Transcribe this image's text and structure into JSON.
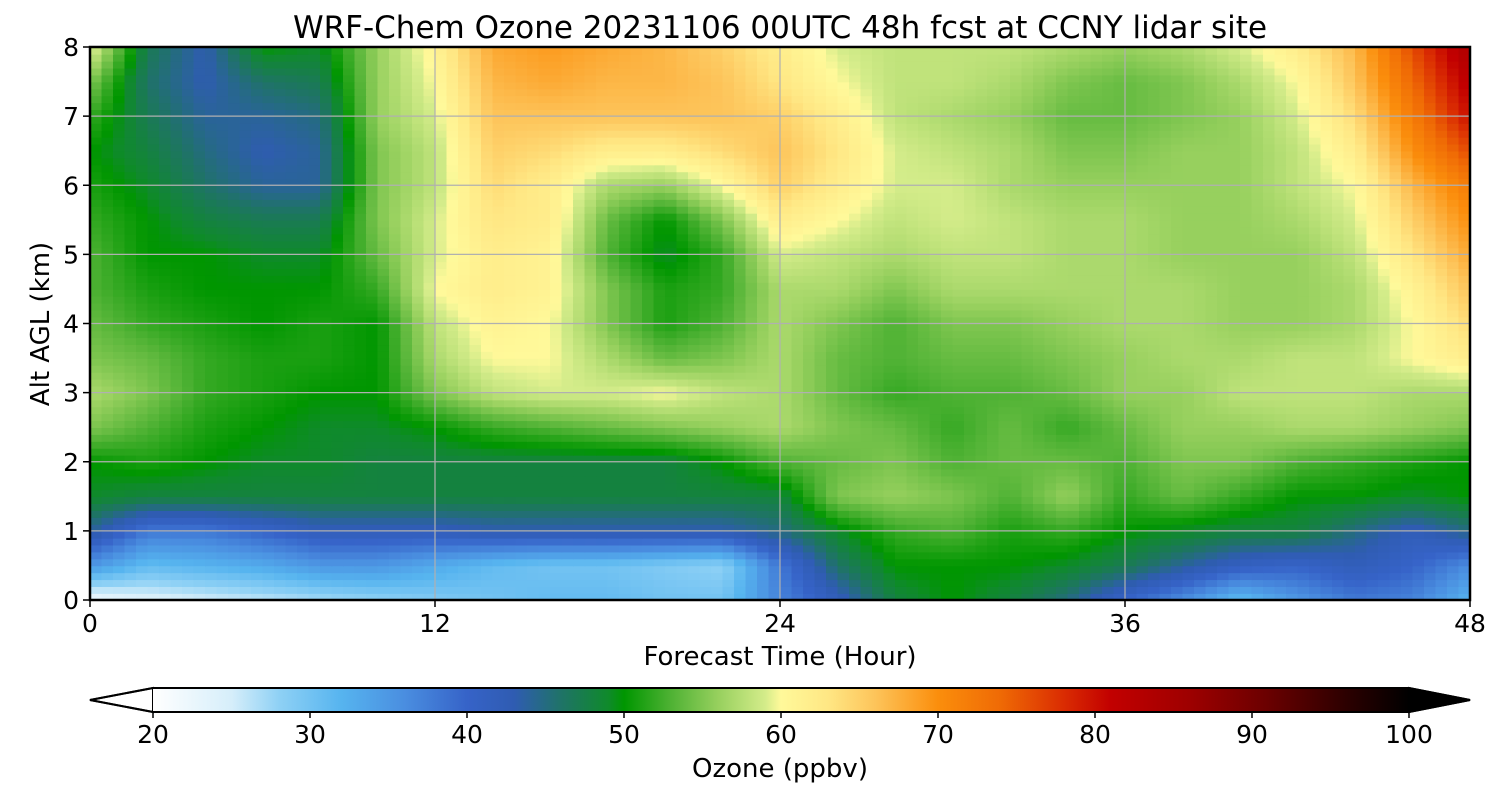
{
  "chart_data": {
    "type": "heatmap",
    "title": "WRF-Chem Ozone  20231106 00UTC 48h fcst at CCNY lidar site",
    "xlabel": "Forecast Time (Hour)",
    "ylabel": "Alt AGL (km)",
    "xlim": [
      0,
      48
    ],
    "ylim": [
      0,
      8
    ],
    "x_ticks": [
      0,
      12,
      24,
      36,
      48
    ],
    "y_ticks": [
      0,
      1,
      2,
      3,
      4,
      5,
      6,
      7,
      8
    ],
    "grid": true,
    "x": [
      0,
      2,
      4,
      6,
      8,
      10,
      12,
      14,
      16,
      18,
      20,
      22,
      24,
      26,
      28,
      30,
      32,
      34,
      36,
      38,
      40,
      42,
      44,
      46,
      48
    ],
    "y": [
      0,
      0.5,
      1,
      1.5,
      2,
      2.5,
      3,
      3.5,
      4,
      4.5,
      5,
      5.5,
      6,
      6.5,
      7,
      7.5,
      8
    ],
    "z": [
      [
        22,
        24,
        25,
        26,
        27,
        28,
        29,
        30,
        31,
        31,
        30,
        30,
        37,
        42,
        48,
        50,
        48,
        45,
        40,
        36,
        31,
        35,
        38,
        37,
        32
      ],
      [
        35,
        31,
        32,
        33,
        35,
        35,
        33,
        31,
        30,
        30,
        29,
        28,
        38,
        46,
        50,
        50,
        50,
        49,
        47,
        44,
        41,
        40,
        42,
        40,
        36
      ],
      [
        44,
        38,
        38,
        40,
        42,
        42,
        42,
        43,
        43,
        43,
        43,
        43,
        45,
        49,
        52,
        53,
        51,
        52,
        50,
        49,
        48,
        48,
        45,
        42,
        45
      ],
      [
        49,
        48,
        48,
        48,
        48,
        48,
        48,
        48,
        48,
        48,
        48,
        48,
        48,
        55,
        56,
        55,
        53,
        56,
        52,
        54,
        52,
        50,
        50,
        49,
        50
      ],
      [
        50,
        51,
        50,
        49,
        49,
        48,
        48,
        48,
        48,
        48,
        48,
        50,
        53,
        54,
        55,
        53,
        54,
        54,
        53,
        55,
        55,
        53,
        52,
        51,
        50
      ],
      [
        55,
        53,
        51,
        50,
        49,
        49,
        50,
        52,
        53,
        54,
        55,
        56,
        57,
        55,
        54,
        52,
        54,
        52,
        54,
        56,
        56,
        57,
        57,
        56,
        55
      ],
      [
        57,
        55,
        52,
        51,
        50,
        50,
        55,
        58,
        59,
        59,
        60,
        58,
        57,
        54,
        52,
        53,
        53,
        54,
        56,
        56,
        58,
        58,
        58,
        57,
        57
      ],
      [
        55,
        54,
        52,
        51,
        51,
        50,
        57,
        60,
        60,
        57,
        54,
        55,
        57,
        54,
        53,
        54,
        54,
        55,
        56,
        57,
        57,
        58,
        58,
        60,
        62
      ],
      [
        54,
        52,
        51,
        50,
        51,
        50,
        58,
        61,
        60,
        55,
        51,
        53,
        57,
        55,
        53,
        55,
        55,
        56,
        57,
        57,
        56,
        56,
        57,
        60,
        64
      ],
      [
        53,
        51,
        50,
        50,
        50,
        52,
        60,
        62,
        61,
        55,
        51,
        52,
        57,
        57,
        55,
        57,
        57,
        57,
        57,
        57,
        56,
        56,
        57,
        61,
        66
      ],
      [
        53,
        50,
        50,
        49,
        49,
        54,
        59,
        62,
        61,
        53,
        49,
        52,
        59,
        58,
        57,
        58,
        58,
        57,
        57,
        56,
        56,
        56,
        58,
        63,
        68
      ],
      [
        52,
        50,
        48,
        47,
        47,
        55,
        59,
        63,
        62,
        54,
        50,
        55,
        62,
        60,
        58,
        59,
        58,
        57,
        57,
        56,
        56,
        57,
        59,
        65,
        70
      ],
      [
        51,
        49,
        46,
        44,
        44,
        55,
        58,
        64,
        62,
        57,
        56,
        60,
        65,
        62,
        59,
        59,
        57,
        56,
        56,
        56,
        56,
        58,
        60,
        67,
        72
      ],
      [
        50,
        48,
        45,
        43,
        44,
        55,
        58,
        65,
        64,
        62,
        62,
        64,
        66,
        63,
        59,
        58,
        57,
        55,
        55,
        56,
        56,
        58,
        62,
        70,
        76
      ],
      [
        52,
        47,
        44,
        44,
        45,
        56,
        59,
        66,
        66,
        66,
        66,
        66,
        65,
        62,
        58,
        57,
        56,
        54,
        54,
        55,
        56,
        59,
        64,
        72,
        80
      ],
      [
        55,
        46,
        43,
        46,
        47,
        56,
        60,
        67,
        68,
        67,
        67,
        66,
        63,
        60,
        58,
        58,
        57,
        55,
        54,
        55,
        57,
        60,
        66,
        74,
        82
      ],
      [
        60,
        47,
        43,
        50,
        49,
        56,
        61,
        68,
        69,
        68,
        67,
        65,
        62,
        59,
        58,
        58,
        58,
        57,
        56,
        57,
        59,
        62,
        67,
        76,
        84
      ]
    ],
    "colorbar": {
      "label": "Ozone  (ppbv)",
      "min": 20,
      "max": 100,
      "extend": "both",
      "ticks": [
        20,
        30,
        40,
        50,
        60,
        70,
        80,
        90,
        100
      ],
      "tick_labels": [
        "20",
        "30",
        "40",
        "50",
        "60",
        "70",
        "80",
        "90",
        "100"
      ],
      "stops": [
        {
          "v": 20,
          "c": "#ffffff"
        },
        {
          "v": 25,
          "c": "#d6eefa"
        },
        {
          "v": 28,
          "c": "#8fd1f5"
        },
        {
          "v": 32,
          "c": "#56b4ef"
        },
        {
          "v": 36,
          "c": "#4a8ee0"
        },
        {
          "v": 40,
          "c": "#3663c8"
        },
        {
          "v": 43,
          "c": "#2f5cb2"
        },
        {
          "v": 46,
          "c": "#1f7367"
        },
        {
          "v": 49,
          "c": "#0f8a2b"
        },
        {
          "v": 50,
          "c": "#009600"
        },
        {
          "v": 53,
          "c": "#4fb234"
        },
        {
          "v": 56,
          "c": "#97d05e"
        },
        {
          "v": 59,
          "c": "#d4ec8a"
        },
        {
          "v": 60,
          "c": "#fff99a"
        },
        {
          "v": 63,
          "c": "#ffe784"
        },
        {
          "v": 66,
          "c": "#fdc45a"
        },
        {
          "v": 70,
          "c": "#fb8e0c"
        },
        {
          "v": 74,
          "c": "#ef6a05"
        },
        {
          "v": 78,
          "c": "#da2c02"
        },
        {
          "v": 81,
          "c": "#c20000"
        },
        {
          "v": 86,
          "c": "#9e0000"
        },
        {
          "v": 91,
          "c": "#6a0000"
        },
        {
          "v": 96,
          "c": "#2c0000"
        },
        {
          "v": 100,
          "c": "#000000"
        }
      ]
    }
  }
}
